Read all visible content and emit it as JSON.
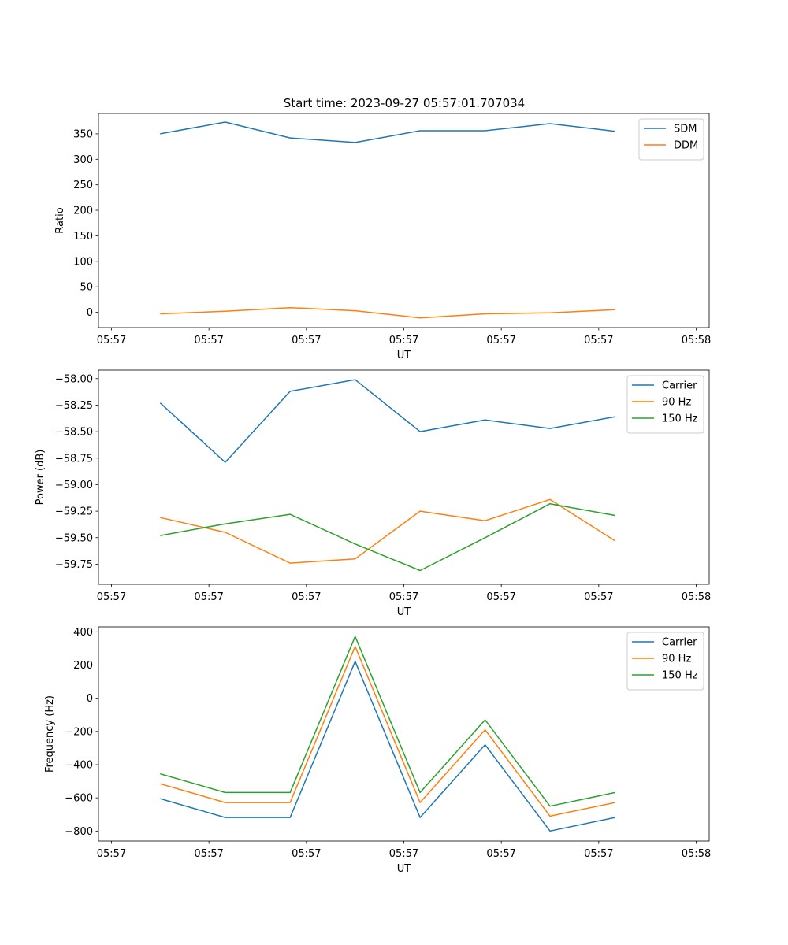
{
  "figure": {
    "title": "Start time: 2023-09-27 05:57:01.707034"
  },
  "chart_data": [
    {
      "type": "line",
      "ylabel": "Ratio",
      "xlabel": "UT",
      "ylim": [
        -30,
        390
      ],
      "yticks": [
        0,
        50,
        100,
        150,
        200,
        250,
        300,
        350
      ],
      "xlim": [
        -0.2,
        9.2
      ],
      "xticks": [
        0,
        1.5,
        3,
        4.5,
        6,
        7.5,
        9
      ],
      "xtick_labels": [
        "05:57",
        "05:57",
        "05:57",
        "05:57",
        "05:57",
        "05:57",
        "05:58"
      ],
      "x": [
        0.75,
        1.75,
        2.75,
        3.75,
        4.75,
        5.75,
        6.75,
        7.75
      ],
      "legend": "top-right",
      "series": [
        {
          "name": "SDM",
          "color": "#1f77b4",
          "values": [
            350,
            373,
            342,
            333,
            356,
            356,
            370,
            355
          ]
        },
        {
          "name": "DDM",
          "color": "#ff7f0e",
          "values": [
            -3,
            2,
            9,
            3,
            -11,
            -3,
            -1,
            5
          ]
        }
      ]
    },
    {
      "type": "line",
      "ylabel": "Power (dB)",
      "xlabel": "UT",
      "ylim": [
        -59.94,
        -57.92
      ],
      "yticks": [
        -58.0,
        -58.25,
        -58.5,
        -58.75,
        -59.0,
        -59.25,
        -59.5,
        -59.75
      ],
      "ytick_labels": [
        "−58.00",
        "−58.25",
        "−58.50",
        "−58.75",
        "−59.00",
        "−59.25",
        "−59.50",
        "−59.75"
      ],
      "xlim": [
        -0.2,
        9.2
      ],
      "xticks": [
        0,
        1.5,
        3,
        4.5,
        6,
        7.5,
        9
      ],
      "xtick_labels": [
        "05:57",
        "05:57",
        "05:57",
        "05:57",
        "05:57",
        "05:57",
        "05:58"
      ],
      "x": [
        0.75,
        1.75,
        2.75,
        3.75,
        4.75,
        5.75,
        6.75,
        7.75
      ],
      "legend": "top-right",
      "series": [
        {
          "name": "Carrier",
          "color": "#1f77b4",
          "values": [
            -58.23,
            -58.79,
            -58.12,
            -58.01,
            -58.5,
            -58.39,
            -58.47,
            -58.36
          ]
        },
        {
          "name": "90 Hz",
          "color": "#ff7f0e",
          "values": [
            -59.31,
            -59.45,
            -59.74,
            -59.7,
            -59.25,
            -59.34,
            -59.14,
            -59.53
          ]
        },
        {
          "name": "150 Hz",
          "color": "#2ca02c",
          "values": [
            -59.48,
            -59.37,
            -59.28,
            -59.56,
            -59.81,
            -59.5,
            -59.18,
            -59.29
          ]
        }
      ]
    },
    {
      "type": "line",
      "ylabel": "Frequency (Hz)",
      "xlabel": "UT",
      "ylim": [
        -860,
        430
      ],
      "yticks": [
        400,
        200,
        0,
        -200,
        -400,
        -600,
        -800
      ],
      "ytick_labels": [
        "400",
        "200",
        "0",
        "−200",
        "−400",
        "−600",
        "−800"
      ],
      "xlim": [
        -0.2,
        9.2
      ],
      "xticks": [
        0,
        1.5,
        3,
        4.5,
        6,
        7.5,
        9
      ],
      "xtick_labels": [
        "05:57",
        "05:57",
        "05:57",
        "05:57",
        "05:57",
        "05:57",
        "05:58"
      ],
      "x": [
        0.75,
        1.75,
        2.75,
        3.75,
        4.75,
        5.75,
        6.75,
        7.75
      ],
      "legend": "top-right",
      "series": [
        {
          "name": "Carrier",
          "color": "#1f77b4",
          "values": [
            -605,
            -718,
            -718,
            222,
            -718,
            -280,
            -800,
            -718
          ]
        },
        {
          "name": "90 Hz",
          "color": "#ff7f0e",
          "values": [
            -515,
            -628,
            -628,
            312,
            -628,
            -190,
            -710,
            -628
          ]
        },
        {
          "name": "150 Hz",
          "color": "#2ca02c",
          "values": [
            -455,
            -568,
            -568,
            372,
            -568,
            -130,
            -650,
            -568
          ]
        }
      ]
    }
  ]
}
